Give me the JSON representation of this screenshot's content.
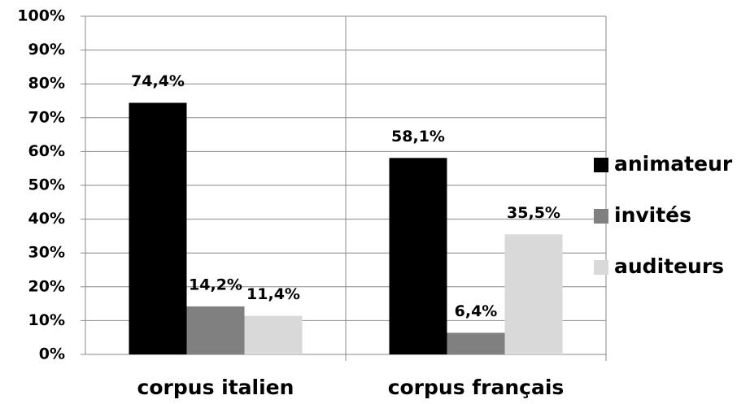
{
  "chart_data": {
    "type": "bar",
    "categories": [
      "corpus italien",
      "corpus français"
    ],
    "series": [
      {
        "name": "animateur",
        "color": "#000000",
        "values": [
          74.4,
          58.1
        ],
        "value_labels": [
          "74,4%",
          "58,1%"
        ]
      },
      {
        "name": "invités",
        "color": "#808080",
        "values": [
          14.2,
          6.4
        ],
        "value_labels": [
          "14,2%",
          "6,4%"
        ]
      },
      {
        "name": "auditeurs",
        "color": "#d9d9d9",
        "values": [
          11.4,
          35.5
        ],
        "value_labels": [
          "11,4%",
          "35,5%"
        ]
      }
    ],
    "ylim": [
      0,
      100
    ],
    "yticks": [
      {
        "value": 0,
        "label": "0%"
      },
      {
        "value": 10,
        "label": "10%"
      },
      {
        "value": 20,
        "label": "20%"
      },
      {
        "value": 30,
        "label": "30%"
      },
      {
        "value": 40,
        "label": "40%"
      },
      {
        "value": 50,
        "label": "50%"
      },
      {
        "value": 60,
        "label": "60%"
      },
      {
        "value": 70,
        "label": "70%"
      },
      {
        "value": 80,
        "label": "80%"
      },
      {
        "value": 90,
        "label": "90%"
      },
      {
        "value": 100,
        "label": "100%"
      }
    ],
    "grid": true,
    "legend": "right"
  }
}
